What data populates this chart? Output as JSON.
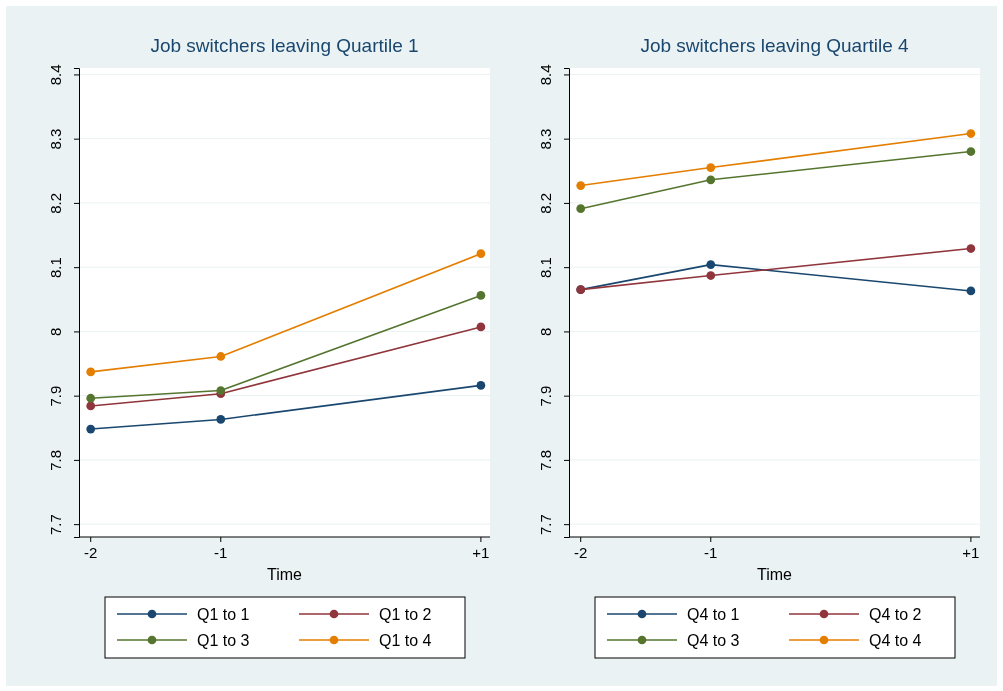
{
  "chart_data": [
    {
      "type": "line",
      "title": "Job switchers leaving Quartile 1",
      "xlabel": "Time",
      "x": [
        -2,
        -1,
        1
      ],
      "xlim": [
        -2.09,
        1.07
      ],
      "xticks": [
        {
          "value": -2,
          "label": "-2"
        },
        {
          "value": -1,
          "label": "-1"
        },
        {
          "value": 1,
          "label": "+1"
        }
      ],
      "ylim": [
        7.68,
        8.41
      ],
      "yticks": [
        7.7,
        7.8,
        7.9,
        8,
        8.1,
        8.2,
        8.3,
        8.4
      ],
      "grid": "y",
      "legend": "bottom",
      "marker": "circle",
      "series": [
        {
          "name": "Q1 to 1",
          "color": "#1a476f",
          "values": [
            7.848,
            7.863,
            7.916
          ]
        },
        {
          "name": "Q1 to 2",
          "color": "#90353b",
          "values": [
            7.884,
            7.903,
            8.007
          ]
        },
        {
          "name": "Q1 to 3",
          "color": "#55752f",
          "values": [
            7.896,
            7.908,
            8.056
          ]
        },
        {
          "name": "Q1 to 4",
          "color": "#e37e00",
          "values": [
            7.937,
            7.961,
            8.121
          ]
        }
      ]
    },
    {
      "type": "line",
      "title": "Job switchers leaving Quartile 4",
      "xlabel": "Time",
      "x": [
        -2,
        -1,
        1
      ],
      "xlim": [
        -2.09,
        1.07
      ],
      "xticks": [
        {
          "value": -2,
          "label": "-2"
        },
        {
          "value": -1,
          "label": "-1"
        },
        {
          "value": 1,
          "label": "+1"
        }
      ],
      "ylim": [
        7.68,
        8.41
      ],
      "yticks": [
        7.7,
        7.8,
        7.9,
        8,
        8.1,
        8.2,
        8.3,
        8.4
      ],
      "grid": "y",
      "legend": "bottom",
      "marker": "circle",
      "series": [
        {
          "name": "Q4 to 1",
          "color": "#1a476f",
          "values": [
            8.065,
            8.104,
            8.063
          ]
        },
        {
          "name": "Q4 to 2",
          "color": "#90353b",
          "values": [
            8.065,
            8.087,
            8.129
          ]
        },
        {
          "name": "Q4 to 3",
          "color": "#55752f",
          "values": [
            8.191,
            8.236,
            8.28
          ]
        },
        {
          "name": "Q4 to 4",
          "color": "#e37e00",
          "values": [
            8.227,
            8.255,
            8.308
          ]
        }
      ]
    }
  ]
}
